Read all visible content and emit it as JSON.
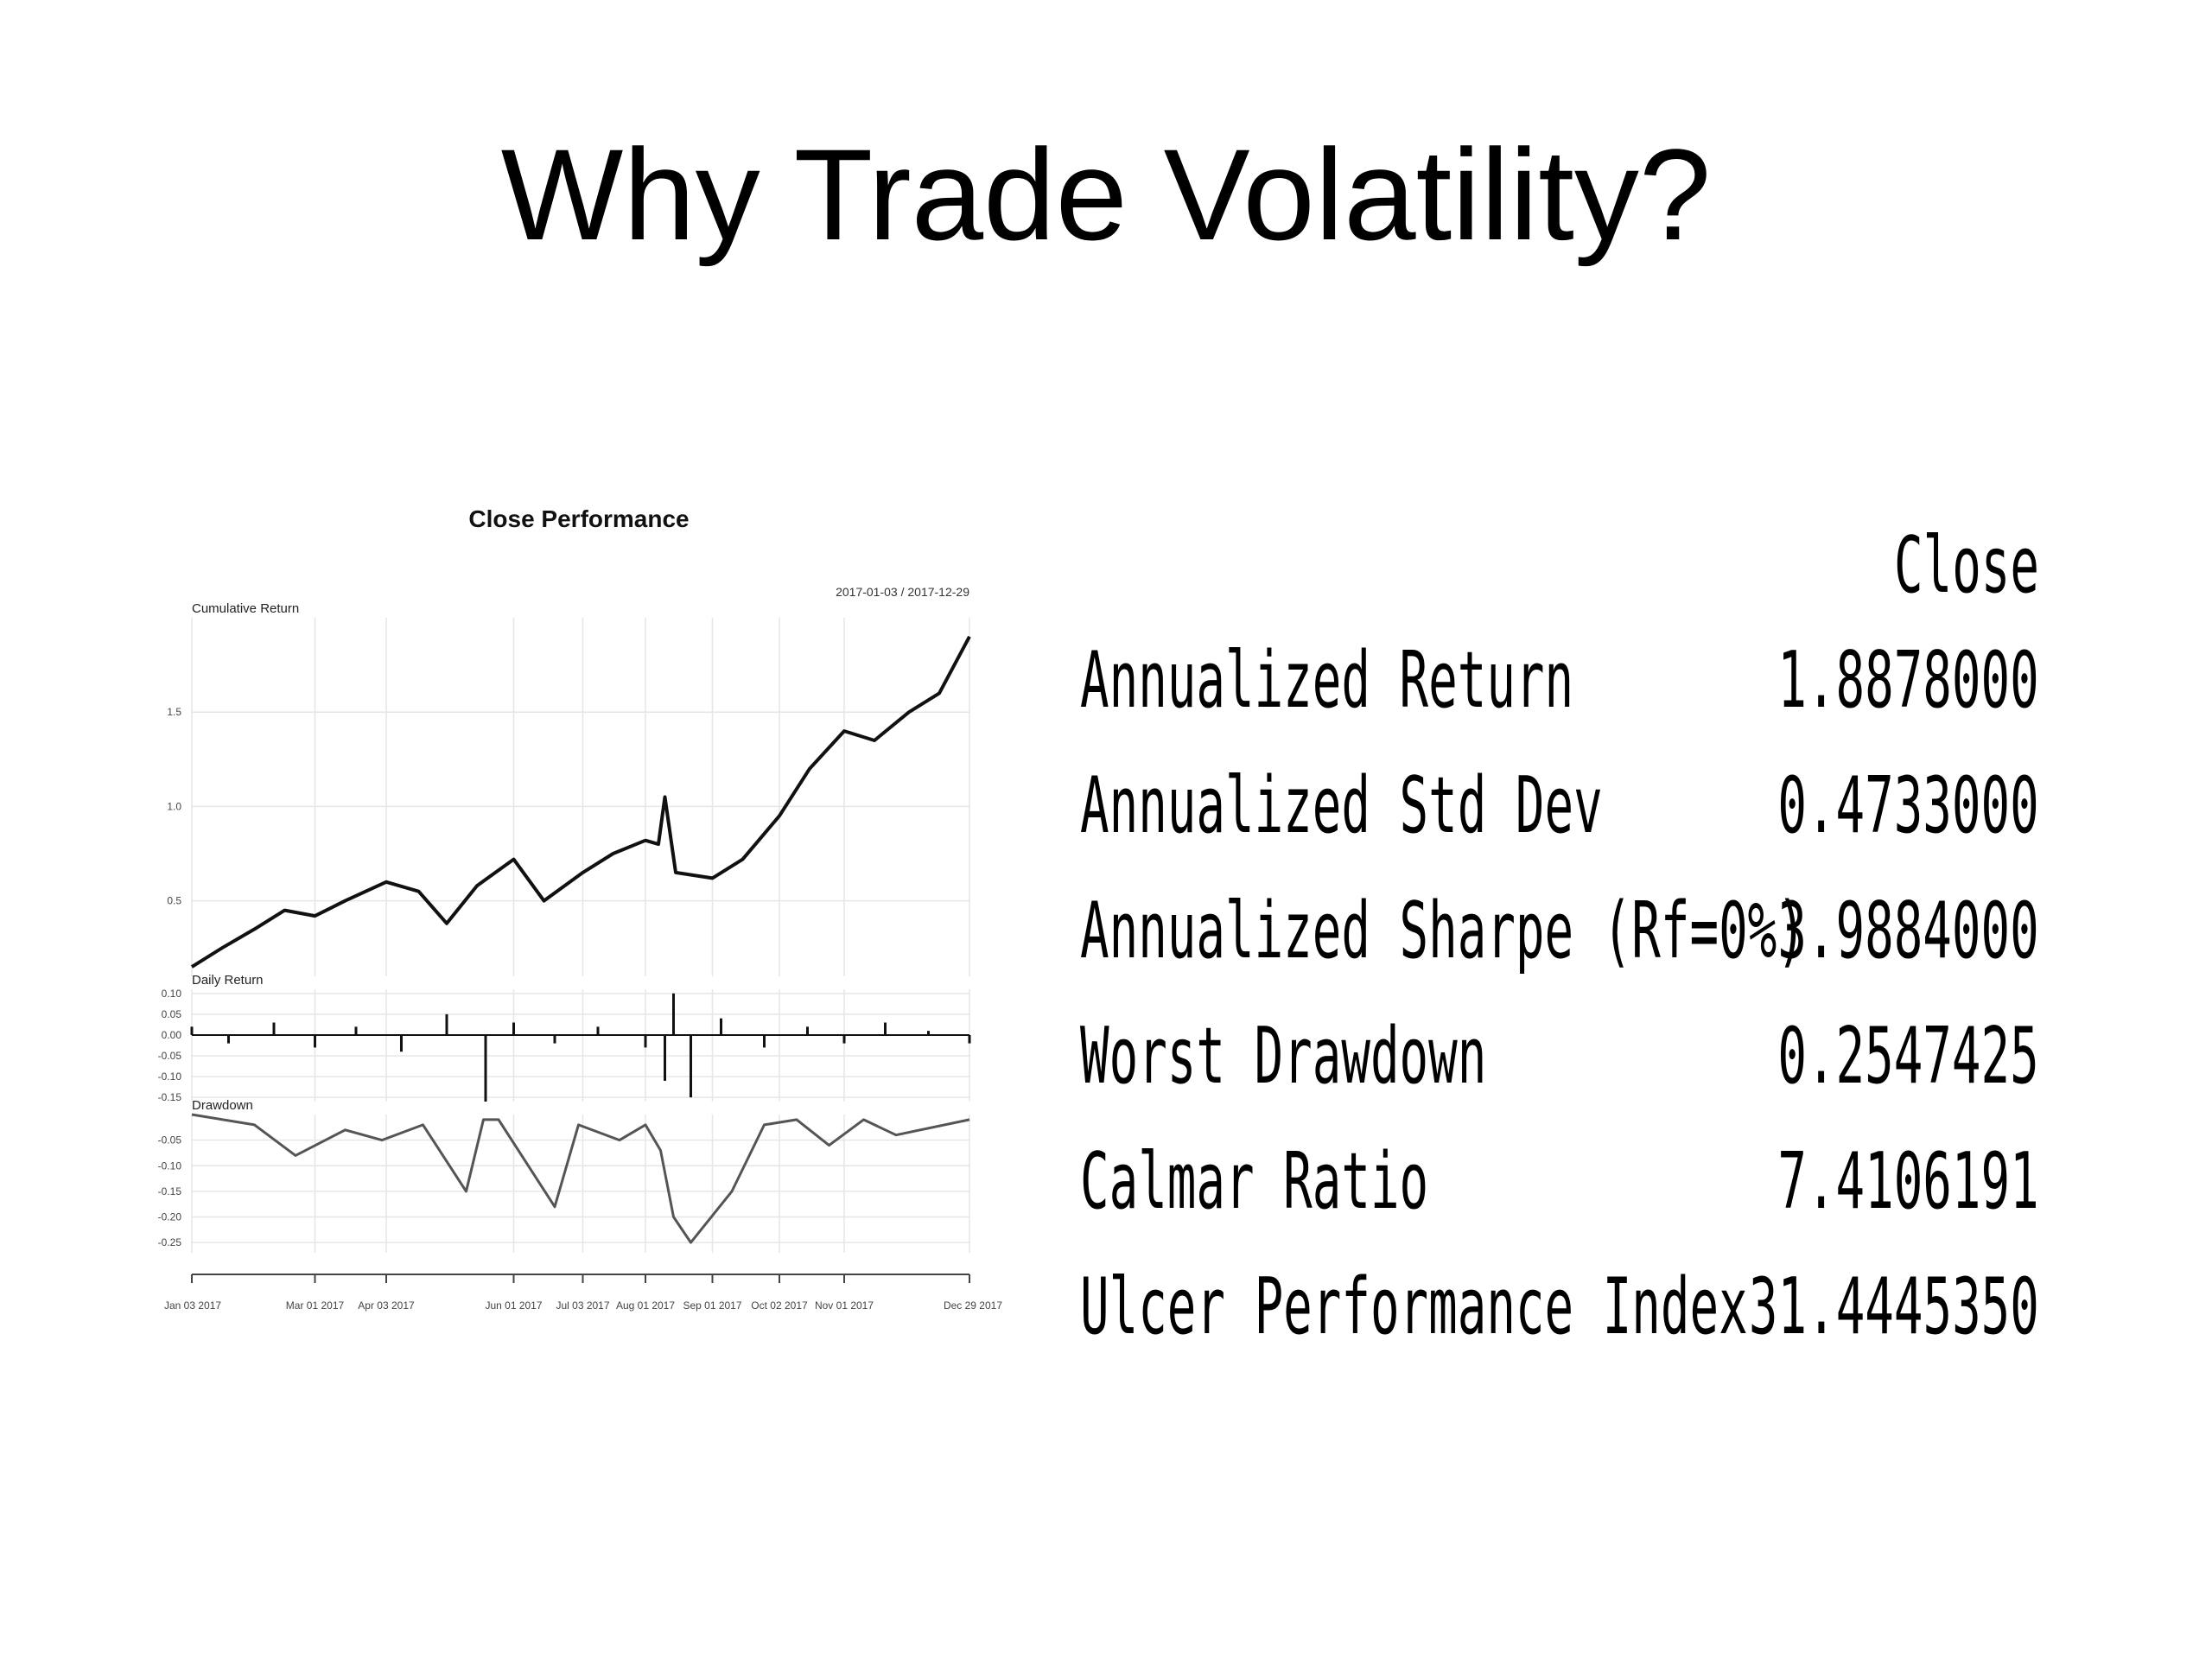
{
  "slide": {
    "title": "Why Trade Volatility?"
  },
  "chart_data": {
    "type": "line",
    "title": "Close Performance",
    "date_range": "2017-01-03 / 2017-12-29",
    "x_ticks": [
      "Jan 03 2017",
      "Mar 01 2017",
      "Apr 03 2017",
      "Jun 01 2017",
      "Jul 03 2017",
      "Aug 01 2017",
      "Sep 01 2017",
      "Oct 02 2017",
      "Nov 01 2017",
      "Dec 29 2017"
    ],
    "panels": [
      {
        "name": "Cumulative Return",
        "ylim": [
          0.1,
          2.0
        ],
        "y_ticks": [
          "1.5",
          "1.0",
          "0.5"
        ],
        "x": [
          "2017-01-03",
          "2017-01-17",
          "2017-02-01",
          "2017-02-15",
          "2017-03-01",
          "2017-03-15",
          "2017-04-03",
          "2017-04-18",
          "2017-05-01",
          "2017-05-15",
          "2017-06-01",
          "2017-06-15",
          "2017-07-03",
          "2017-07-17",
          "2017-08-01",
          "2017-08-07",
          "2017-08-10",
          "2017-08-15",
          "2017-09-01",
          "2017-09-15",
          "2017-10-02",
          "2017-10-16",
          "2017-11-01",
          "2017-11-15",
          "2017-12-01",
          "2017-12-15",
          "2017-12-29"
        ],
        "values": [
          0.15,
          0.25,
          0.35,
          0.45,
          0.42,
          0.5,
          0.6,
          0.55,
          0.38,
          0.58,
          0.72,
          0.5,
          0.65,
          0.75,
          0.82,
          0.8,
          1.05,
          0.65,
          0.62,
          0.72,
          0.95,
          1.2,
          1.4,
          1.35,
          1.5,
          1.6,
          1.9
        ]
      },
      {
        "name": "Daily Return",
        "ylim": [
          -0.16,
          0.11
        ],
        "y_ticks": [
          "0.10",
          "0.05",
          "0.00",
          "-0.05",
          "-0.10",
          "-0.15"
        ],
        "x": [
          "2017-01-03",
          "2017-01-20",
          "2017-02-10",
          "2017-03-01",
          "2017-03-20",
          "2017-04-10",
          "2017-05-01",
          "2017-05-19",
          "2017-06-01",
          "2017-06-20",
          "2017-07-10",
          "2017-08-01",
          "2017-08-10",
          "2017-08-14",
          "2017-08-22",
          "2017-09-05",
          "2017-09-25",
          "2017-10-15",
          "2017-11-01",
          "2017-11-20",
          "2017-12-10",
          "2017-12-29"
        ],
        "values": [
          0.02,
          -0.02,
          0.03,
          -0.03,
          0.02,
          -0.04,
          0.05,
          -0.16,
          0.03,
          -0.02,
          0.02,
          -0.03,
          -0.11,
          0.1,
          -0.15,
          0.04,
          -0.03,
          0.02,
          -0.02,
          0.03,
          0.01,
          -0.02
        ]
      },
      {
        "name": "Drawdown",
        "ylim": [
          -0.27,
          0.0
        ],
        "y_ticks": [
          "-0.05",
          "-0.10",
          "-0.15",
          "-0.20",
          "-0.25"
        ],
        "x": [
          "2017-01-03",
          "2017-02-01",
          "2017-02-20",
          "2017-03-15",
          "2017-04-01",
          "2017-04-20",
          "2017-05-10",
          "2017-05-18",
          "2017-05-25",
          "2017-06-20",
          "2017-07-01",
          "2017-07-20",
          "2017-08-01",
          "2017-08-08",
          "2017-08-14",
          "2017-08-22",
          "2017-09-10",
          "2017-09-25",
          "2017-10-10",
          "2017-10-25",
          "2017-11-10",
          "2017-11-25",
          "2017-12-29"
        ],
        "values": [
          0.0,
          -0.02,
          -0.08,
          -0.03,
          -0.05,
          -0.02,
          -0.15,
          -0.01,
          -0.01,
          -0.18,
          -0.02,
          -0.05,
          -0.02,
          -0.07,
          -0.2,
          -0.25,
          -0.15,
          -0.02,
          -0.01,
          -0.06,
          -0.01,
          -0.04,
          -0.01
        ]
      }
    ],
    "grid": true
  },
  "stats": {
    "column_header": "Close",
    "rows": [
      {
        "label": "Annualized Return",
        "value": "1.8878000"
      },
      {
        "label": "Annualized Std Dev",
        "value": "0.4733000"
      },
      {
        "label": "Annualized Sharpe (Rf=0%)",
        "value": "3.9884000"
      },
      {
        "label": "Worst Drawdown",
        "value": "0.2547425"
      },
      {
        "label": "Calmar Ratio",
        "value": "7.4106191"
      },
      {
        "label": "Ulcer Performance Index",
        "value": "31.4445350"
      }
    ]
  }
}
